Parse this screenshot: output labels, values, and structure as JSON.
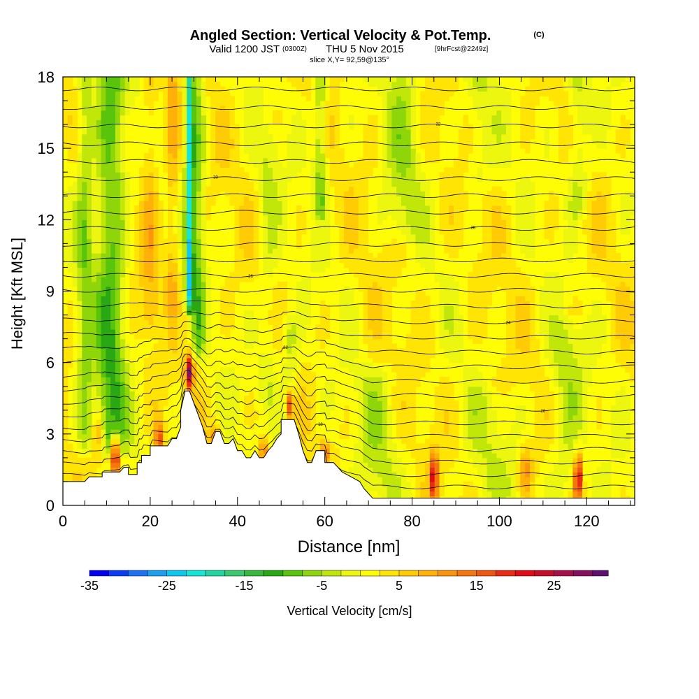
{
  "header": {
    "title": "Angled Section: Vertical Velocity & Pot.Temp.",
    "title_unit": "(C)",
    "valid_prefix": "Valid 1200 JST",
    "valid_utc": "(0300Z)",
    "valid_date": "THU 5 Nov 2015",
    "fcst": "[9hrFcst@2249z]",
    "slice": "slice X,Y= 92,59@135°"
  },
  "chart_data": {
    "type": "heatmap",
    "title": "Angled Section: Vertical Velocity & Pot.Temp.",
    "xlabel": "Distance [nm]",
    "ylabel": "Height [Kft MSL]",
    "xlim": [
      0,
      131
    ],
    "ylim": [
      0,
      18
    ],
    "x_ticks": [
      "0",
      "20",
      "40",
      "60",
      "80",
      "100",
      "120"
    ],
    "y_ticks": [
      "0",
      "3",
      "6",
      "9",
      "12",
      "15",
      "18"
    ],
    "terrain_height_kft": [
      [
        0,
        1.0
      ],
      [
        5,
        1.0
      ],
      [
        6,
        1.2
      ],
      [
        9,
        1.2
      ],
      [
        9,
        1.4
      ],
      [
        13,
        1.4
      ],
      [
        14,
        1.6
      ],
      [
        15,
        1.6
      ],
      [
        15,
        1.3
      ],
      [
        17,
        1.3
      ],
      [
        17,
        1.8
      ],
      [
        18,
        1.8
      ],
      [
        18,
        2.1
      ],
      [
        20,
        2.1
      ],
      [
        20,
        2.5
      ],
      [
        24,
        2.5
      ],
      [
        25,
        2.8
      ],
      [
        26,
        2.8
      ],
      [
        27,
        3.3
      ],
      [
        27,
        4.0
      ],
      [
        28,
        4.8
      ],
      [
        29,
        4.8
      ],
      [
        30,
        4.3
      ],
      [
        31,
        3.8
      ],
      [
        32,
        3.3
      ],
      [
        33,
        2.6
      ],
      [
        34,
        2.6
      ],
      [
        35,
        3.1
      ],
      [
        36,
        3.1
      ],
      [
        37,
        2.6
      ],
      [
        38,
        2.6
      ],
      [
        39,
        2.8
      ],
      [
        40,
        2.3
      ],
      [
        41,
        2.3
      ],
      [
        42,
        2.0
      ],
      [
        43,
        2.0
      ],
      [
        44,
        2.3
      ],
      [
        45,
        2.0
      ],
      [
        46,
        2.0
      ],
      [
        47,
        2.3
      ],
      [
        48,
        2.5
      ],
      [
        49,
        2.8
      ],
      [
        50,
        3.0
      ],
      [
        50,
        3.6
      ],
      [
        53,
        3.6
      ],
      [
        54,
        3.0
      ],
      [
        55,
        2.3
      ],
      [
        56,
        1.8
      ],
      [
        57,
        1.8
      ],
      [
        58,
        2.3
      ],
      [
        60,
        2.3
      ],
      [
        60,
        1.8
      ],
      [
        62,
        1.8
      ],
      [
        64,
        1.4
      ],
      [
        66,
        1.2
      ],
      [
        68,
        1.0
      ],
      [
        69,
        0.7
      ],
      [
        70,
        0.5
      ],
      [
        71,
        0.3
      ],
      [
        131,
        0.3
      ]
    ],
    "potential_temperature_contours_c": [
      16,
      18,
      20,
      22,
      24,
      26,
      28,
      30,
      32,
      34,
      36,
      38,
      40
    ],
    "colorbar": {
      "label": "Vertical Velocity [cm/s]",
      "min": -35,
      "max": 32,
      "step": 2.5,
      "tick_labels": [
        "-35",
        "-25",
        "-15",
        "-5",
        "5",
        "15",
        "25"
      ],
      "colors": [
        "#0000ee",
        "#0a3cf5",
        "#1c74f4",
        "#1aa0ee",
        "#0ec8f0",
        "#16e6d6",
        "#22d6a2",
        "#3cc86c",
        "#36b83a",
        "#2aa814",
        "#58c40c",
        "#8ed60a",
        "#c0e60a",
        "#ecf60e",
        "#fffd05",
        "#ffe404",
        "#ffcb05",
        "#ffb009",
        "#fc940c",
        "#f5760d",
        "#ef5711",
        "#e72b14",
        "#df0c18",
        "#c40d28",
        "#a5104a",
        "#851060",
        "#5c1070"
      ]
    }
  }
}
